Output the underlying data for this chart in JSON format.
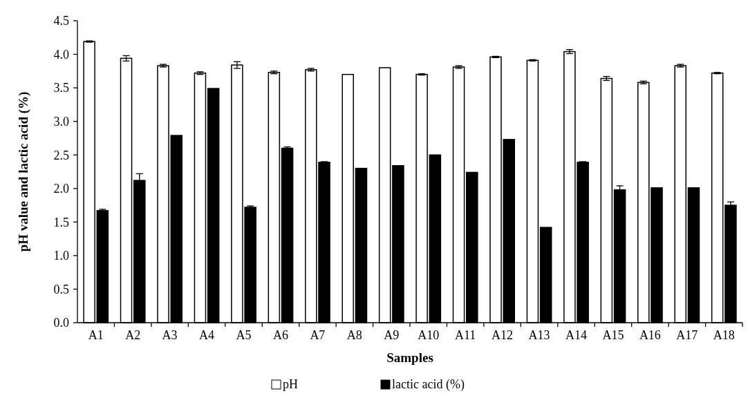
{
  "chart_data": {
    "type": "bar",
    "xlabel": "Samples",
    "ylabel": "pH value and lactic acid (%)",
    "categories": [
      "A1",
      "A2",
      "A3",
      "A4",
      "A5",
      "A6",
      "A7",
      "A8",
      "A9",
      "A10",
      "A11",
      "A12",
      "A13",
      "A14",
      "A15",
      "A16",
      "A17",
      "A18"
    ],
    "series": [
      {
        "name": "pH",
        "color": "#ffffff",
        "values": [
          4.19,
          3.94,
          3.83,
          3.72,
          3.84,
          3.73,
          3.77,
          3.7,
          3.8,
          3.7,
          3.81,
          3.96,
          3.91,
          4.04,
          3.64,
          3.58,
          3.83,
          3.72
        ],
        "errors": [
          0.01,
          0.04,
          0.02,
          0.02,
          0.05,
          0.02,
          0.02,
          null,
          null,
          0.01,
          0.02,
          0.01,
          0.01,
          0.03,
          0.03,
          0.02,
          0.02,
          0.01
        ]
      },
      {
        "name": "lactic acid (%)",
        "color": "#000000",
        "values": [
          1.67,
          2.12,
          2.79,
          3.49,
          1.72,
          2.6,
          2.39,
          2.3,
          2.34,
          2.5,
          2.24,
          2.73,
          1.42,
          2.39,
          1.98,
          2.01,
          2.01,
          1.75
        ],
        "errors": [
          0.02,
          0.1,
          null,
          null,
          0.02,
          0.02,
          0.01,
          null,
          null,
          null,
          null,
          null,
          null,
          0.01,
          0.06,
          null,
          null,
          0.05
        ]
      }
    ],
    "ylim": [
      0,
      4.5
    ],
    "yticks": [
      {
        "value": 0,
        "label": "0.0"
      },
      {
        "value": 0.5,
        "label": "0.5"
      },
      {
        "value": 1,
        "label": "1.0"
      },
      {
        "value": 1.5,
        "label": "1.5"
      },
      {
        "value": 2,
        "label": "2.0"
      },
      {
        "value": 2.5,
        "label": "2.5"
      },
      {
        "value": 3,
        "label": "3.0"
      },
      {
        "value": 3.5,
        "label": "3.5"
      },
      {
        "value": 4,
        "label": "4.0"
      },
      {
        "value": 4.5,
        "label": "4.5"
      }
    ],
    "legend": "bottom",
    "grid": false
  }
}
